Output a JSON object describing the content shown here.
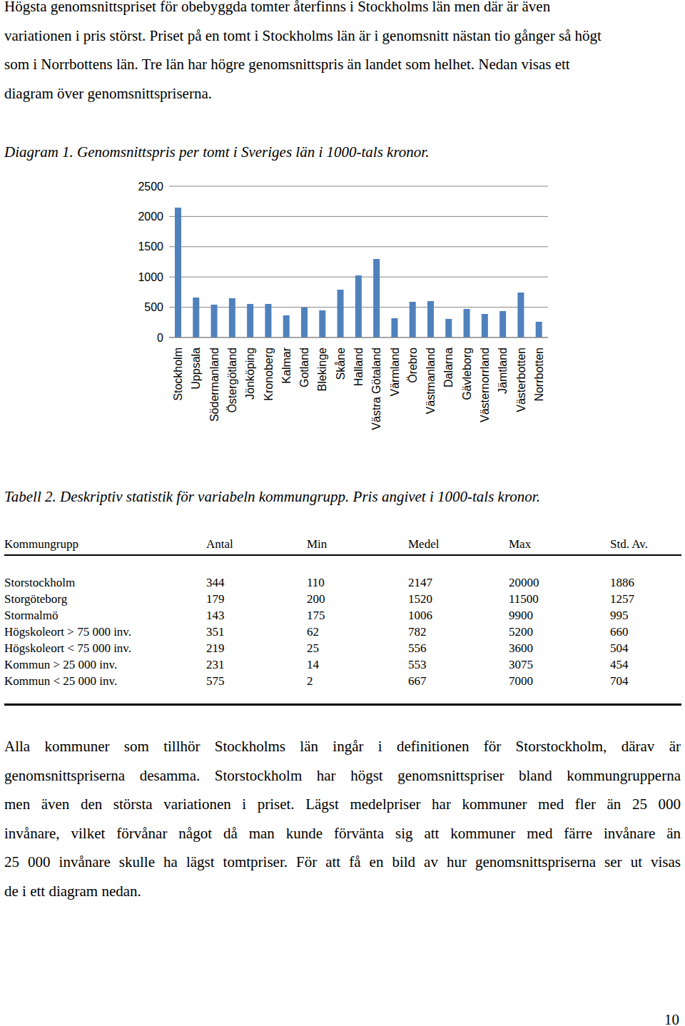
{
  "paragraph_1": [
    "Högsta genomsnittspriset för obebyggda tomter återfinns i Stockholms län men där är även",
    "variationen i pris störst. Priset på en tomt i Stockholms län är i genomsnitt nästan tio gånger så högt",
    "som i Norrbottens län. Tre län har högre genomsnittspris än landet som helhet. Nedan visas ett",
    "diagram över genomsnittspriserna."
  ],
  "diagram_caption": "Diagram 1. Genomsnittspris per tomt i Sveriges län i 1000-tals kronor.",
  "chart_data": {
    "type": "bar",
    "categories": [
      "Stockholm",
      "Uppsala",
      "Södermanland",
      "Östergötland",
      "Jönköping",
      "Kronoberg",
      "Kalmar",
      "Gotland",
      "Blekinge",
      "Skåne",
      "Halland",
      "Västra Götaland",
      "Värmland",
      "Örebro",
      "Västmanland",
      "Dalarna",
      "Gävleborg",
      "Västernorrland",
      "Jämtland",
      "Västerbotten",
      "Norrbotten"
    ],
    "values": [
      2147,
      660,
      542,
      649,
      553,
      553,
      366,
      495,
      448,
      790,
      1026,
      1297,
      318,
      590,
      601,
      307,
      472,
      389,
      436,
      743,
      259
    ],
    "color": "#4f81bd",
    "ylim": [
      0,
      2500
    ],
    "yticks": [
      0,
      500,
      1000,
      1500,
      2000,
      2500
    ],
    "grid": true
  },
  "table_caption": "Tabell 2. Deskriptiv statistik för variabeln kommungrupp. Pris angivet i 1000-tals kronor.",
  "table": {
    "header": [
      "Kommungrupp",
      "Antal",
      "Min",
      "Medel",
      "Max",
      "Std. Av."
    ],
    "rows": [
      [
        "Storstockholm",
        344,
        110,
        2147,
        20000,
        1886
      ],
      [
        "Storgöteborg",
        179,
        200,
        1520,
        11500,
        1257
      ],
      [
        "Stormalmö",
        143,
        175,
        1006,
        9900,
        995
      ],
      [
        "Högskoleort > 75 000 inv.",
        351,
        62,
        782,
        5200,
        660
      ],
      [
        "Högskoleort < 75 000 inv.",
        219,
        25,
        556,
        3600,
        504
      ],
      [
        "Kommun > 25 000 inv.",
        231,
        14,
        553,
        3075,
        454
      ],
      [
        "Kommun < 25 000 inv.",
        575,
        2,
        667,
        7000,
        704
      ]
    ]
  },
  "paragraph_2": [
    "Alla kommuner som tillhör Stockholms län ingår i definitionen för Storstockholm, därav är",
    "genomsnittspriserna desamma. Storstockholm har högst genomsnittspriser bland kommungrupperna",
    "men även den största variationen i priset. Lägst medelpriser har kommuner med fler än 25 000",
    "invånare, vilket förvånar något då man kunde förvänta sig att kommuner med färre invånare än",
    "25 000 invånare skulle ha lägst tomtpriser. För att få en bild av hur genomsnittspriserna ser ut visas",
    "de i ett diagram nedan."
  ],
  "page_number": 10
}
